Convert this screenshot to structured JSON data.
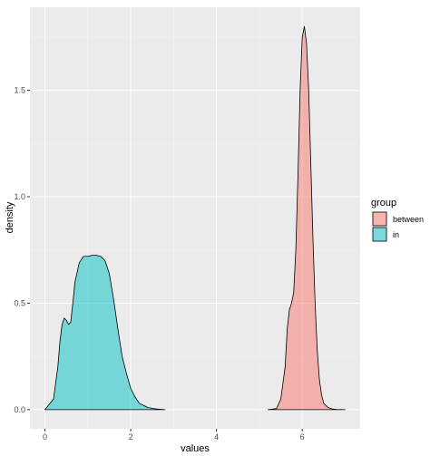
{
  "chart_data": {
    "type": "area",
    "title": "",
    "xlabel": "values",
    "ylabel": "density",
    "xlim": [
      -0.35,
      7.35
    ],
    "ylim": [
      -0.09,
      1.89
    ],
    "x_ticks": [
      0,
      2,
      4,
      6
    ],
    "y_ticks": [
      0.0,
      0.5,
      1.0,
      1.5
    ],
    "x_tick_labels": [
      "0",
      "2",
      "4",
      "6"
    ],
    "y_tick_labels": [
      "0.0",
      "0.5",
      "1.0",
      "1.5"
    ],
    "grid": true,
    "legend": {
      "title": "group",
      "position": "right",
      "entries": [
        "between",
        "in"
      ]
    },
    "series": [
      {
        "name": "between",
        "color": "#F8766D",
        "x": [
          5.2,
          5.4,
          5.5,
          5.6,
          5.65,
          5.7,
          5.75,
          5.8,
          5.85,
          5.9,
          5.95,
          6.0,
          6.05,
          6.1,
          6.15,
          6.2,
          6.25,
          6.3,
          6.35,
          6.4,
          6.45,
          6.5,
          6.6,
          6.7,
          6.8,
          7.0
        ],
        "values": [
          0.0,
          0.005,
          0.05,
          0.2,
          0.38,
          0.47,
          0.5,
          0.55,
          0.75,
          1.1,
          1.5,
          1.75,
          1.8,
          1.72,
          1.5,
          1.15,
          0.8,
          0.5,
          0.28,
          0.14,
          0.07,
          0.03,
          0.01,
          0.003,
          0.001,
          0.0
        ]
      },
      {
        "name": "in",
        "color": "#00BFC4",
        "x": [
          0.0,
          0.2,
          0.3,
          0.35,
          0.4,
          0.45,
          0.5,
          0.55,
          0.6,
          0.65,
          0.7,
          0.8,
          0.9,
          1.0,
          1.1,
          1.2,
          1.3,
          1.4,
          1.5,
          1.6,
          1.7,
          1.8,
          1.9,
          2.0,
          2.1,
          2.2,
          2.4,
          2.6,
          2.8
        ],
        "values": [
          0.0,
          0.05,
          0.2,
          0.32,
          0.4,
          0.43,
          0.42,
          0.4,
          0.41,
          0.5,
          0.6,
          0.69,
          0.72,
          0.72,
          0.725,
          0.725,
          0.72,
          0.7,
          0.64,
          0.52,
          0.38,
          0.25,
          0.17,
          0.1,
          0.06,
          0.03,
          0.01,
          0.003,
          0.0
        ]
      }
    ]
  }
}
